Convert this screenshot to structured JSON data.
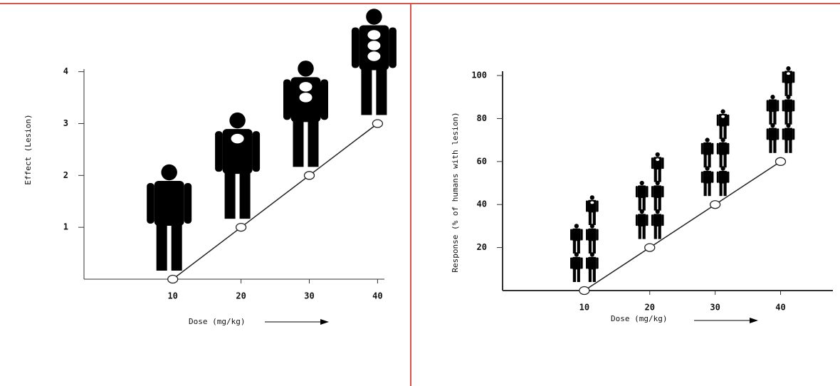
{
  "chart_data": [
    {
      "type": "line",
      "x_label": "Dose (mg/kg)",
      "y_label": "Effect (Lesion)",
      "x": [
        10,
        20,
        30,
        40
      ],
      "values": [
        0,
        1,
        2,
        3
      ],
      "color": "#222",
      "xlim": [
        -3,
        41
      ],
      "ylim": [
        0,
        4.05
      ],
      "xticks": [
        10,
        20,
        30,
        40
      ],
      "yticks": [
        1,
        2,
        3,
        4
      ]
    },
    {
      "type": "line",
      "x_label": "Dose (mg/kg)",
      "y_label": "Response (% of humans with lesion)",
      "x": [
        10,
        20,
        30,
        40
      ],
      "values": [
        0,
        20,
        40,
        60
      ],
      "color": "#222",
      "xlim": [
        -2.5,
        48
      ],
      "ylim": [
        0,
        102
      ],
      "xticks": [
        10,
        20,
        30,
        40
      ],
      "yticks": [
        20,
        40,
        60,
        80,
        100
      ]
    }
  ]
}
